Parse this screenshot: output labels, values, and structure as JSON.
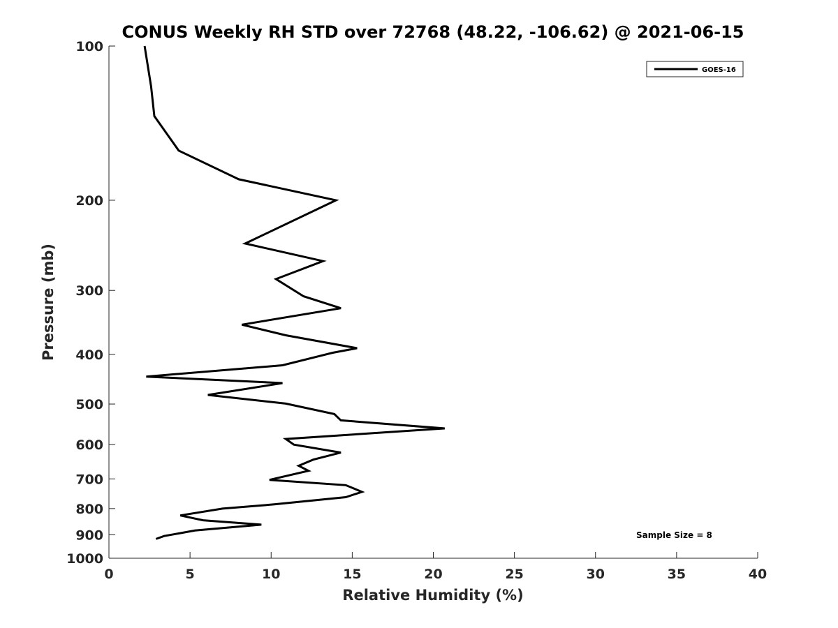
{
  "chart_data": {
    "type": "line",
    "title": "CONUS Weekly RH STD over 72768 (48.22, -106.62) @ 2021-06-15",
    "xlabel": "Relative Humidity (%)",
    "ylabel": "Pressure (mb)",
    "xlim": [
      0,
      40
    ],
    "ylim": [
      100,
      1000
    ],
    "y_scale": "log",
    "y_reversed": true,
    "x_ticks": [
      0,
      5,
      10,
      15,
      20,
      25,
      30,
      35,
      40
    ],
    "y_ticks": [
      100,
      200,
      300,
      400,
      500,
      600,
      700,
      800,
      900,
      1000
    ],
    "grid": false,
    "legend_position": "top-right",
    "series": [
      {
        "name": "GOES-16",
        "color": "#000000",
        "x": [
          2.2,
          2.6,
          2.8,
          4.3,
          8.0,
          14.0,
          8.4,
          13.2,
          10.3,
          12.0,
          14.3,
          8.2,
          10.9,
          15.3,
          13.8,
          10.7,
          2.3,
          10.7,
          6.1,
          10.9,
          13.9,
          14.3,
          20.7,
          10.9,
          11.4,
          14.3,
          12.6,
          11.7,
          12.3,
          9.9,
          14.6,
          15.6,
          14.6,
          10.2,
          7.0,
          4.4,
          5.8,
          9.4,
          5.3,
          3.4,
          2.9
        ],
        "y": [
          100,
          120,
          137,
          160,
          182,
          200,
          243,
          263,
          285,
          308,
          325,
          350,
          367,
          389,
          397,
          420,
          442,
          455,
          480,
          499,
          523,
          538,
          558,
          585,
          600,
          622,
          642,
          660,
          675,
          703,
          720,
          742,
          760,
          785,
          800,
          825,
          843,
          860,
          883,
          905,
          917
        ]
      }
    ],
    "annotations": [
      "Sample Size = 8"
    ]
  }
}
